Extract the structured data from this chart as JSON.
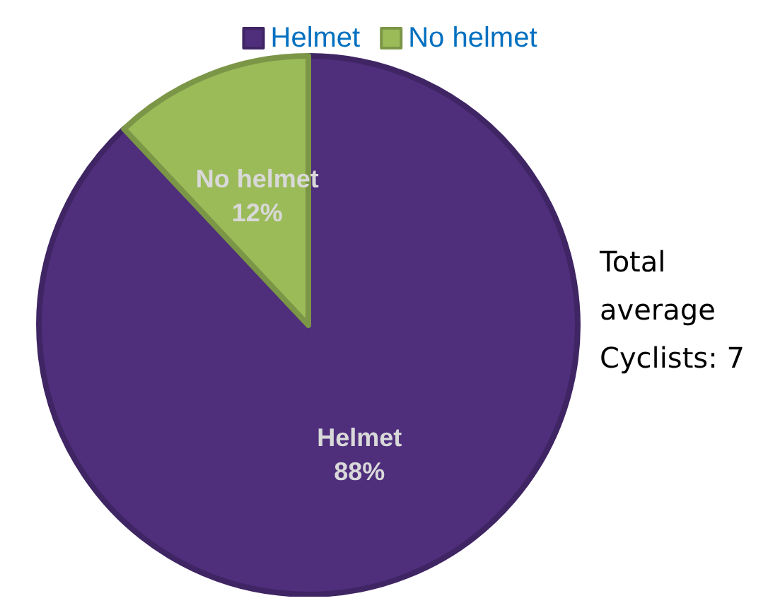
{
  "chart_data": {
    "type": "pie",
    "categories": [
      "Helmet",
      "No helmet"
    ],
    "values": [
      88,
      12
    ],
    "colors": [
      "#4f2e7c",
      "#9bbb59"
    ],
    "value_labels": [
      "88%",
      "12%"
    ],
    "legend": "top",
    "annotations": [
      "Total average Cyclists: 7"
    ]
  }
}
